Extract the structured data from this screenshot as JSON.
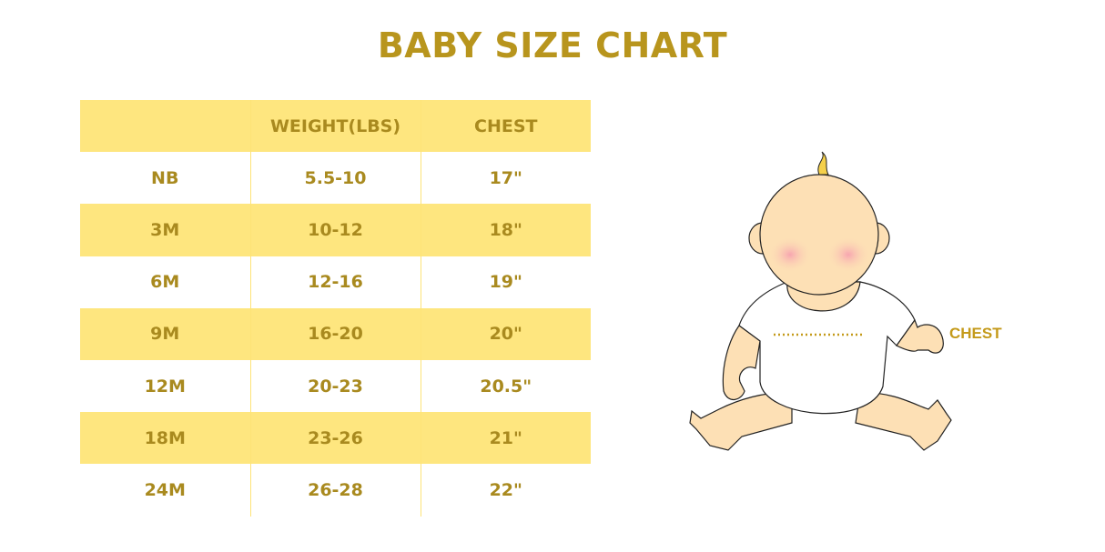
{
  "title": "BABY SIZE CHART",
  "table": {
    "headers": [
      "",
      "WEIGHT(LBS)",
      "CHEST"
    ],
    "rows": [
      [
        "NB",
        "5.5-10",
        "17\""
      ],
      [
        "3M",
        "10-12",
        "18\""
      ],
      [
        "6M",
        "12-16",
        "19\""
      ],
      [
        "9M",
        "16-20",
        "20\""
      ],
      [
        "12M",
        "20-23",
        "20.5\""
      ],
      [
        "18M",
        "23-26",
        "21\""
      ],
      [
        "24M",
        "26-28",
        "22\""
      ]
    ]
  },
  "illustration": {
    "chest_label": "CHEST"
  },
  "colors": {
    "accent_text": "#a98a1f",
    "row_highlight": "#fee67f",
    "skin": "#fde0b5"
  }
}
